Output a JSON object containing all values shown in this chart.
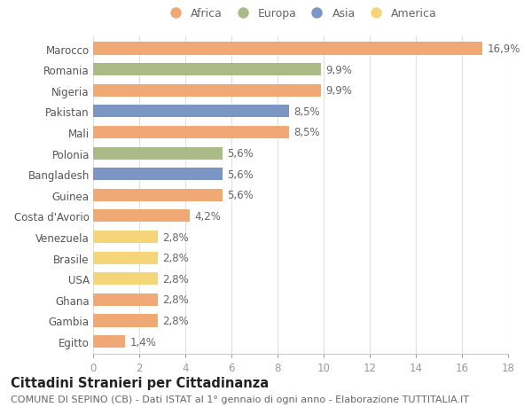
{
  "categories": [
    "Marocco",
    "Romania",
    "Nigeria",
    "Pakistan",
    "Mali",
    "Polonia",
    "Bangladesh",
    "Guinea",
    "Costa d'Avorio",
    "Venezuela",
    "Brasile",
    "USA",
    "Ghana",
    "Gambia",
    "Egitto"
  ],
  "values": [
    16.9,
    9.9,
    9.9,
    8.5,
    8.5,
    5.6,
    5.6,
    5.6,
    4.2,
    2.8,
    2.8,
    2.8,
    2.8,
    2.8,
    1.4
  ],
  "colors": [
    "#F0A875",
    "#AABB88",
    "#F0A875",
    "#7B96C2",
    "#F0A875",
    "#AABB88",
    "#7B96C2",
    "#F0A875",
    "#F0A875",
    "#F5D57A",
    "#F5D57A",
    "#F5D57A",
    "#F0A875",
    "#F0A875",
    "#F0A875"
  ],
  "bar_labels": [
    "16,9%",
    "9,9%",
    "9,9%",
    "8,5%",
    "8,5%",
    "5,6%",
    "5,6%",
    "5,6%",
    "4,2%",
    "2,8%",
    "2,8%",
    "2,8%",
    "2,8%",
    "2,8%",
    "1,4%"
  ],
  "legend_labels": [
    "Africa",
    "Europa",
    "Asia",
    "America"
  ],
  "legend_colors": [
    "#F0A875",
    "#AABB88",
    "#7B96C2",
    "#F5D57A"
  ],
  "title": "Cittadini Stranieri per Cittadinanza",
  "subtitle": "COMUNE DI SEPINO (CB) - Dati ISTAT al 1° gennaio di ogni anno - Elaborazione TUTTITALIA.IT",
  "xlim": [
    0,
    18
  ],
  "xticks": [
    0,
    2,
    4,
    6,
    8,
    10,
    12,
    14,
    16,
    18
  ],
  "background_color": "#ffffff",
  "grid_color": "#e0e0e0",
  "bar_height": 0.6,
  "label_fontsize": 8.5,
  "title_fontsize": 10.5,
  "subtitle_fontsize": 8,
  "tick_fontsize": 8.5,
  "ytick_fontsize": 8.5
}
